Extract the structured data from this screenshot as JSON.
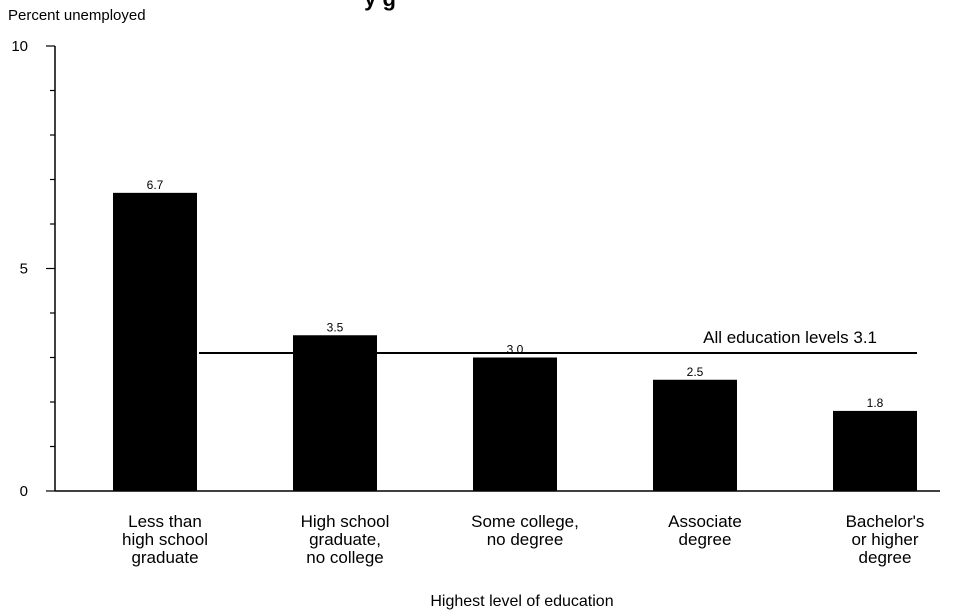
{
  "chart_data": {
    "type": "bar",
    "title": "y g",
    "ylabel": "Percent unemployed",
    "xlabel": "Highest level of education",
    "ylim": [
      0,
      10
    ],
    "yticks": [
      0,
      5,
      10
    ],
    "categories": [
      [
        "Less than",
        "high school",
        "graduate"
      ],
      [
        "High school",
        "graduate,",
        "no college"
      ],
      [
        "Some college,",
        "no degree"
      ],
      [
        "Associate",
        "degree"
      ],
      [
        "Bachelor's",
        "or higher",
        "degree"
      ]
    ],
    "values": [
      6.7,
      3.5,
      3.0,
      2.5,
      1.8
    ],
    "value_labels": [
      "6.7",
      "3.5",
      "3.0",
      "2.5",
      "1.8"
    ],
    "reference_line": {
      "label": "All education levels  3.1",
      "value": 3.1
    },
    "grid": false,
    "colors": {
      "bar": "#000000",
      "axis": "#000000",
      "background": "#ffffff"
    }
  }
}
